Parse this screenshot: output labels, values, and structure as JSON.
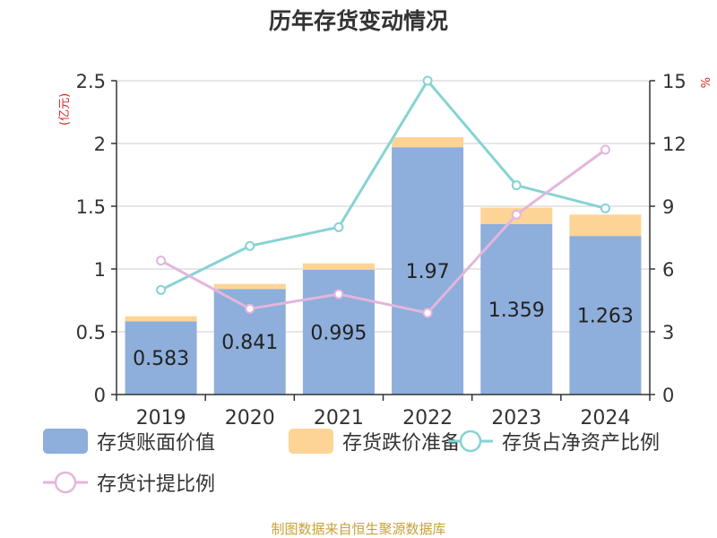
{
  "title": "历年存货变动情况",
  "units": {
    "left": "(亿元)",
    "right": "%"
  },
  "source": "制图数据来自恒生聚源数据库",
  "colors": {
    "book_value": "#8eaedb",
    "impairment": "#fdd496",
    "ratio_net_assets": "#86d3d4",
    "provision_ratio": "#e3b6dc",
    "axis": "#333333",
    "grid": "#cccccc"
  },
  "legend": [
    {
      "label": "存货账面价值",
      "kind": "box",
      "color_key": "book_value"
    },
    {
      "label": "存货跌价准备",
      "kind": "box",
      "color_key": "impairment"
    },
    {
      "label": "存货占净资产比例",
      "kind": "line",
      "color_key": "ratio_net_assets"
    },
    {
      "label": "存货计提比例",
      "kind": "line",
      "color_key": "provision_ratio"
    }
  ],
  "chart_data": {
    "type": "bar",
    "stacked": true,
    "categories": [
      "2019",
      "2020",
      "2021",
      "2022",
      "2023",
      "2024"
    ],
    "left_axis": {
      "ylim": [
        0,
        2.5
      ],
      "ticks": [
        "0",
        "0.5",
        "1",
        "1.5",
        "2",
        "2.5"
      ]
    },
    "right_axis": {
      "ylim": [
        0,
        15
      ],
      "ticks": [
        "0",
        "3",
        "6",
        "9",
        "12",
        "15"
      ]
    },
    "grid": true,
    "series": [
      {
        "name": "存货账面价值",
        "type": "bar",
        "axis": "left",
        "values": [
          0.583,
          0.841,
          0.995,
          1.97,
          1.359,
          1.263
        ],
        "labels": [
          "0.583",
          "0.841",
          "0.995",
          "1.97",
          "1.359",
          "1.263"
        ]
      },
      {
        "name": "存货跌价准备",
        "type": "bar",
        "axis": "left",
        "values": [
          0.04,
          0.04,
          0.05,
          0.08,
          0.13,
          0.17
        ]
      },
      {
        "name": "存货占净资产比例",
        "type": "line",
        "axis": "right",
        "values": [
          5.0,
          7.1,
          8.0,
          15.0,
          10.0,
          8.9
        ]
      },
      {
        "name": "存货计提比例",
        "type": "line",
        "axis": "right",
        "values": [
          6.4,
          4.1,
          4.8,
          3.9,
          8.6,
          11.7
        ]
      }
    ]
  }
}
